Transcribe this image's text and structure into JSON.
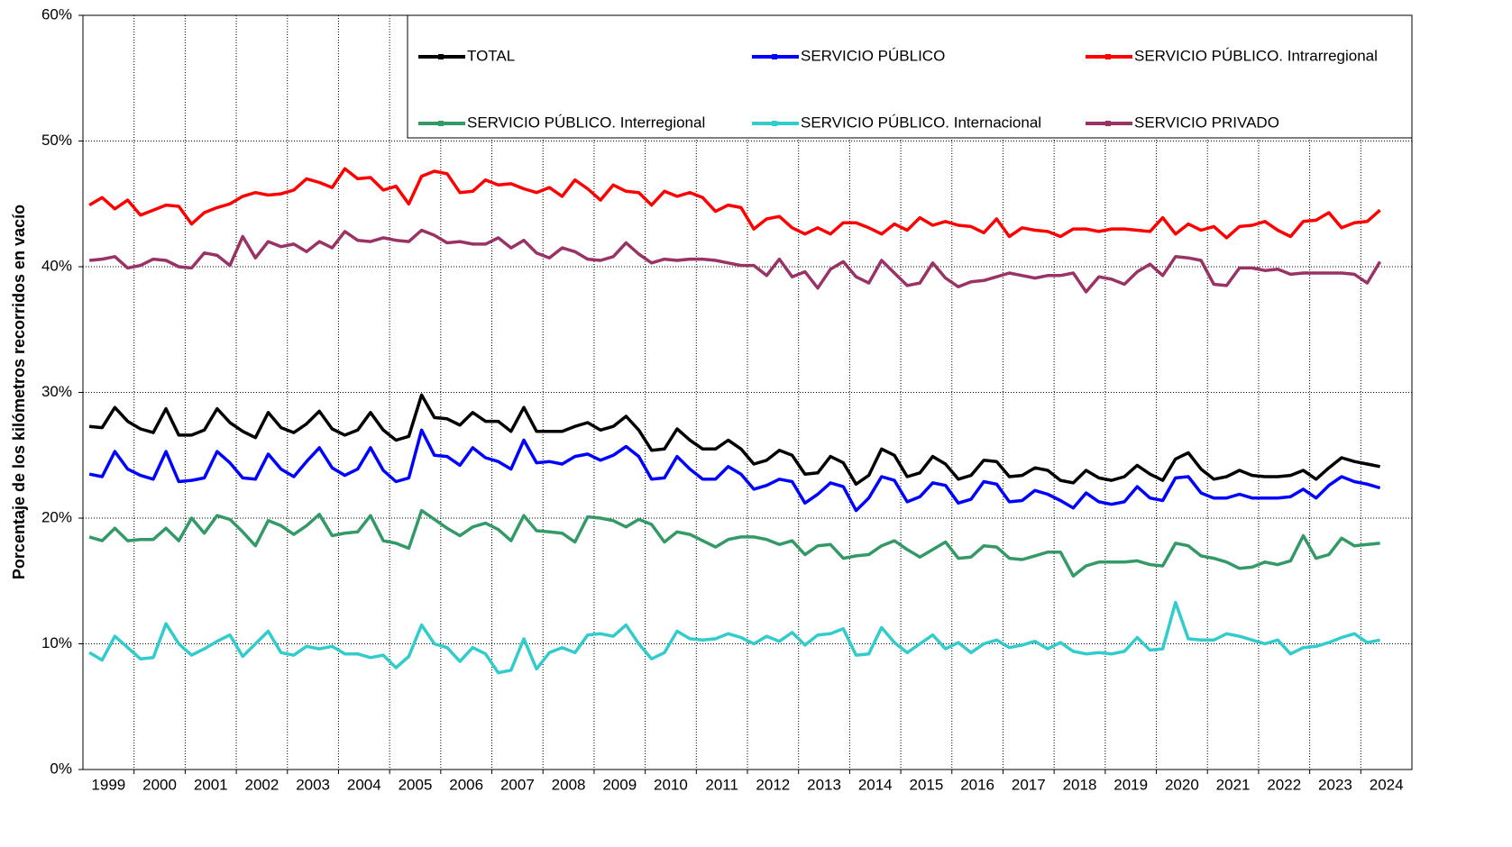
{
  "chart_data": {
    "type": "line",
    "y_label": "Porcentaje de los kilómetros recorridos en vacío",
    "categories": [
      "1999",
      null,
      null,
      null,
      "2000",
      null,
      null,
      null,
      "2001",
      null,
      null,
      null,
      "2002",
      null,
      null,
      null,
      "2003",
      null,
      null,
      null,
      "2004",
      null,
      null,
      null,
      "2005",
      null,
      null,
      null,
      "2006",
      null,
      null,
      null,
      "2007",
      null,
      null,
      null,
      "2008",
      null,
      null,
      null,
      "2009",
      null,
      null,
      null,
      "2010",
      null,
      null,
      null,
      "2011",
      null,
      null,
      null,
      "2012",
      null,
      null,
      null,
      "2013",
      null,
      null,
      null,
      "2014",
      null,
      null,
      null,
      "2015",
      null,
      null,
      null,
      "2016",
      null,
      null,
      null,
      "2017",
      null,
      null,
      null,
      "2018",
      null,
      null,
      null,
      "2019",
      null,
      null,
      null,
      "2020",
      null,
      null,
      null,
      "2021",
      null,
      null,
      null,
      "2022",
      null,
      null,
      null,
      "2023",
      null,
      null,
      null,
      "2024",
      null
    ],
    "ylim": [
      0,
      60
    ],
    "yticks": [
      {
        "value": 0,
        "label": "0%"
      },
      {
        "value": 10,
        "label": "10%"
      },
      {
        "value": 20,
        "label": "20%"
      },
      {
        "value": 30,
        "label": "30%"
      },
      {
        "value": 40,
        "label": "40%"
      },
      {
        "value": 50,
        "label": "50%"
      },
      {
        "value": 60,
        "label": "60%"
      }
    ],
    "grid": true,
    "legend": "top-right",
    "series": [
      {
        "name": "TOTAL",
        "color": "#000000",
        "values": [
          27.3,
          27.2,
          28.8,
          27.7,
          27.1,
          26.8,
          28.7,
          26.6,
          26.6,
          27.0,
          28.7,
          27.6,
          26.9,
          26.4,
          28.4,
          27.2,
          26.8,
          27.5,
          28.5,
          27.1,
          26.6,
          27.0,
          28.4,
          27.0,
          26.2,
          26.5,
          29.8,
          28.0,
          27.9,
          27.4,
          28.4,
          27.7,
          27.7,
          26.9,
          28.8,
          26.9,
          26.9,
          26.9,
          27.3,
          27.6,
          27.0,
          27.3,
          28.1,
          27.0,
          25.4,
          25.5,
          27.1,
          26.2,
          25.5,
          25.5,
          26.2,
          25.5,
          24.3,
          24.6,
          25.4,
          25.0,
          23.5,
          23.6,
          24.9,
          24.4,
          22.7,
          23.4,
          25.5,
          25.0,
          23.3,
          23.6,
          24.9,
          24.3,
          23.1,
          23.4,
          24.6,
          24.5,
          23.3,
          23.4,
          24.0,
          23.8,
          23.0,
          22.8,
          23.8,
          23.2,
          23.0,
          23.3,
          24.2,
          23.5,
          23.0,
          24.7,
          25.2,
          23.9,
          23.1,
          23.3,
          23.8,
          23.4,
          23.3,
          23.3,
          23.4,
          23.8,
          23.1,
          24.0,
          24.8,
          24.5,
          24.3,
          24.1
        ]
      },
      {
        "name": "SERVICIO PÚBLICO",
        "color": "#0000ff",
        "values": [
          23.5,
          23.3,
          25.3,
          23.9,
          23.4,
          23.1,
          25.3,
          22.9,
          23.0,
          23.2,
          25.3,
          24.4,
          23.2,
          23.1,
          25.1,
          23.9,
          23.3,
          24.5,
          25.6,
          24.0,
          23.4,
          23.9,
          25.6,
          23.8,
          22.9,
          23.2,
          27.0,
          25.0,
          24.9,
          24.2,
          25.6,
          24.8,
          24.5,
          23.9,
          26.2,
          24.4,
          24.5,
          24.3,
          24.9,
          25.1,
          24.6,
          25.0,
          25.7,
          24.9,
          23.1,
          23.2,
          24.9,
          23.9,
          23.1,
          23.1,
          24.1,
          23.5,
          22.3,
          22.6,
          23.1,
          22.9,
          21.2,
          21.9,
          22.8,
          22.5,
          20.6,
          21.6,
          23.3,
          23.0,
          21.3,
          21.7,
          22.8,
          22.6,
          21.2,
          21.5,
          22.9,
          22.7,
          21.3,
          21.4,
          22.2,
          21.9,
          21.4,
          20.8,
          22.0,
          21.3,
          21.1,
          21.3,
          22.5,
          21.6,
          21.4,
          23.2,
          23.3,
          22.0,
          21.6,
          21.6,
          21.9,
          21.6,
          21.6,
          21.6,
          21.7,
          22.3,
          21.6,
          22.6,
          23.3,
          22.9,
          22.7,
          22.4
        ]
      },
      {
        "name": "SERVICIO PÚBLICO. Intrarregional",
        "color": "#ff0000",
        "values": [
          44.9,
          45.5,
          44.6,
          45.3,
          44.1,
          44.5,
          44.9,
          44.8,
          43.4,
          44.3,
          44.7,
          45.0,
          45.6,
          45.9,
          45.7,
          45.8,
          46.1,
          47.0,
          46.7,
          46.3,
          47.8,
          47.0,
          47.1,
          46.1,
          46.4,
          45.0,
          47.2,
          47.6,
          47.4,
          45.9,
          46.0,
          46.9,
          46.5,
          46.6,
          46.2,
          45.9,
          46.3,
          45.6,
          46.9,
          46.2,
          45.3,
          46.5,
          46.0,
          45.9,
          44.9,
          46.0,
          45.6,
          45.9,
          45.5,
          44.4,
          44.9,
          44.7,
          43.0,
          43.8,
          44.0,
          43.1,
          42.6,
          43.1,
          42.6,
          43.5,
          43.5,
          43.1,
          42.6,
          43.4,
          42.9,
          43.9,
          43.3,
          43.6,
          43.3,
          43.2,
          42.7,
          43.8,
          42.4,
          43.1,
          42.9,
          42.8,
          42.4,
          43.0,
          43.0,
          42.8,
          43.0,
          43.0,
          42.9,
          42.8,
          43.9,
          42.6,
          43.4,
          42.9,
          43.2,
          42.3,
          43.2,
          43.3,
          43.6,
          42.9,
          42.4,
          43.6,
          43.7,
          44.3,
          43.1,
          43.5,
          43.6,
          44.5
        ]
      },
      {
        "name": "SERVICIO PÚBLICO. Interregional",
        "color": "#339966",
        "values": [
          18.5,
          18.2,
          19.2,
          18.2,
          18.3,
          18.3,
          19.2,
          18.2,
          20.0,
          18.8,
          20.2,
          19.9,
          18.9,
          17.8,
          19.8,
          19.4,
          18.7,
          19.4,
          20.3,
          18.6,
          18.8,
          18.9,
          20.2,
          18.2,
          18.0,
          17.6,
          20.6,
          19.9,
          19.2,
          18.6,
          19.3,
          19.6,
          19.1,
          18.2,
          20.2,
          19.0,
          18.9,
          18.8,
          18.1,
          20.1,
          20.0,
          19.8,
          19.3,
          19.9,
          19.5,
          18.1,
          18.9,
          18.7,
          18.2,
          17.7,
          18.3,
          18.5,
          18.5,
          18.3,
          17.9,
          18.2,
          17.1,
          17.8,
          17.9,
          16.8,
          17.0,
          17.1,
          17.8,
          18.2,
          17.5,
          16.9,
          17.5,
          18.1,
          16.8,
          16.9,
          17.8,
          17.7,
          16.8,
          16.7,
          17.0,
          17.3,
          17.3,
          15.4,
          16.2,
          16.5,
          16.5,
          16.5,
          16.6,
          16.3,
          16.2,
          18.0,
          17.8,
          17.0,
          16.8,
          16.5,
          16.0,
          16.1,
          16.5,
          16.3,
          16.6,
          18.6,
          16.8,
          17.1,
          18.4,
          17.8,
          17.9,
          18.0
        ]
      },
      {
        "name": "SERVICIO PÚBLICO. Internacional",
        "color": "#33cccc",
        "values": [
          9.3,
          8.7,
          10.6,
          9.7,
          8.8,
          8.9,
          11.6,
          10.0,
          9.1,
          9.6,
          10.2,
          10.7,
          9.0,
          10.0,
          11.0,
          9.3,
          9.1,
          9.8,
          9.6,
          9.8,
          9.2,
          9.2,
          8.9,
          9.1,
          8.1,
          9.0,
          11.5,
          10.0,
          9.7,
          8.6,
          9.7,
          9.2,
          7.7,
          7.9,
          10.4,
          8.0,
          9.3,
          9.7,
          9.3,
          10.7,
          10.8,
          10.6,
          11.5,
          10.0,
          8.8,
          9.3,
          11.0,
          10.4,
          10.3,
          10.4,
          10.8,
          10.5,
          10.0,
          10.6,
          10.2,
          10.9,
          9.9,
          10.7,
          10.8,
          11.2,
          9.1,
          9.2,
          11.3,
          10.1,
          9.3,
          10.0,
          10.7,
          9.6,
          10.1,
          9.3,
          10.0,
          10.3,
          9.7,
          9.9,
          10.2,
          9.6,
          10.1,
          9.4,
          9.2,
          9.3,
          9.2,
          9.4,
          10.5,
          9.5,
          9.6,
          13.3,
          10.4,
          10.3,
          10.3,
          10.8,
          10.6,
          10.3,
          10.0,
          10.3,
          9.2,
          9.7,
          9.8,
          10.1,
          10.5,
          10.8,
          10.1,
          10.3
        ]
      },
      {
        "name": "SERVICIO PRIVADO",
        "color": "#993366",
        "values": [
          40.5,
          40.6,
          40.8,
          39.9,
          40.1,
          40.6,
          40.5,
          40.0,
          39.9,
          41.1,
          40.9,
          40.1,
          42.4,
          40.7,
          42.0,
          41.6,
          41.8,
          41.2,
          42.0,
          41.5,
          42.8,
          42.1,
          42.0,
          42.3,
          42.1,
          42.0,
          42.9,
          42.5,
          41.9,
          42.0,
          41.8,
          41.8,
          42.3,
          41.5,
          42.1,
          41.1,
          40.7,
          41.5,
          41.2,
          40.6,
          40.5,
          40.8,
          41.9,
          41.0,
          40.3,
          40.6,
          40.5,
          40.6,
          40.6,
          40.5,
          40.3,
          40.1,
          40.1,
          39.3,
          40.6,
          39.2,
          39.6,
          38.3,
          39.8,
          40.4,
          39.2,
          38.7,
          40.5,
          39.5,
          38.5,
          38.7,
          40.3,
          39.1,
          38.4,
          38.8,
          38.9,
          39.2,
          39.5,
          39.3,
          39.1,
          39.3,
          39.3,
          39.5,
          38.0,
          39.2,
          39.0,
          38.6,
          39.6,
          40.2,
          39.3,
          40.8,
          40.7,
          40.5,
          38.6,
          38.5,
          39.9,
          39.9,
          39.7,
          39.8,
          39.4,
          39.5,
          39.5,
          39.5,
          39.5,
          39.4,
          38.7,
          40.4
        ]
      }
    ]
  }
}
